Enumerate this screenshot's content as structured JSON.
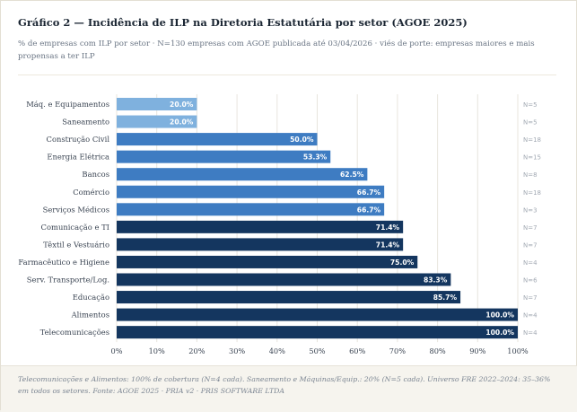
{
  "title": "Gráfico 2 — Incidência de ILP na Diretoria Estatutária por setor (AGOE 2025)",
  "subtitle": "% de empresas com ILP por setor · N=130 empresas com AGOE publicada até 03/04/2026 · viés de porte: empresas maiores e mais propensas a ter ILP",
  "footer": "Telecomunicações e Alimentos: 100% de cobertura (N=4 cada). Saneamento e Máquinas/Equip.: 20% (N=5 cada). Universo FRE 2022–2024: 35–36% em todos os setores. Fonte: AGOE 2025 · PRIA v2 · PRIS SOFTWARE LTDA",
  "colors": {
    "low": "#7fb1de",
    "mid": "#3e7cc2",
    "high": "#14365f",
    "grid": "#e8e5de",
    "label": "#3a4452",
    "n_label": "#a2a9b3"
  },
  "chart_data": {
    "type": "bar",
    "orientation": "horizontal",
    "categories": [
      "Máq. e Equipamentos",
      "Saneamento",
      "Construção Civil",
      "Energia Elétrica",
      "Bancos",
      "Comércio",
      "Serviços Médicos",
      "Comunicação e TI",
      "Têxtil e Vestuário",
      "Farmacêutico e Higiene",
      "Serv. Transporte/Log.",
      "Educação",
      "Alimentos",
      "Telecomunicações"
    ],
    "values": [
      20.0,
      20.0,
      50.0,
      53.3,
      62.5,
      66.7,
      66.7,
      71.4,
      71.4,
      75.0,
      83.3,
      85.7,
      100.0,
      100.0
    ],
    "value_labels": [
      "20.0%",
      "20.0%",
      "50.0%",
      "53.3%",
      "62.5%",
      "66.7%",
      "66.7%",
      "71.4%",
      "71.4%",
      "75.0%",
      "83.3%",
      "85.7%",
      "100.0%",
      "100.0%"
    ],
    "n_labels": [
      "N=5",
      "N=5",
      "N=18",
      "N=15",
      "N=8",
      "N=18",
      "N=3",
      "N=7",
      "N=7",
      "N=4",
      "N=6",
      "N=7",
      "N=4",
      "N=4"
    ],
    "tiers": [
      "low",
      "low",
      "mid",
      "mid",
      "mid",
      "mid",
      "mid",
      "high",
      "high",
      "high",
      "high",
      "high",
      "high",
      "high"
    ],
    "xlim": [
      0,
      100
    ],
    "xticks": [
      "0%",
      "10%",
      "20%",
      "30%",
      "40%",
      "50%",
      "60%",
      "70%",
      "80%",
      "90%",
      "100%"
    ],
    "xlabel": "",
    "ylabel": "",
    "grid": true
  }
}
